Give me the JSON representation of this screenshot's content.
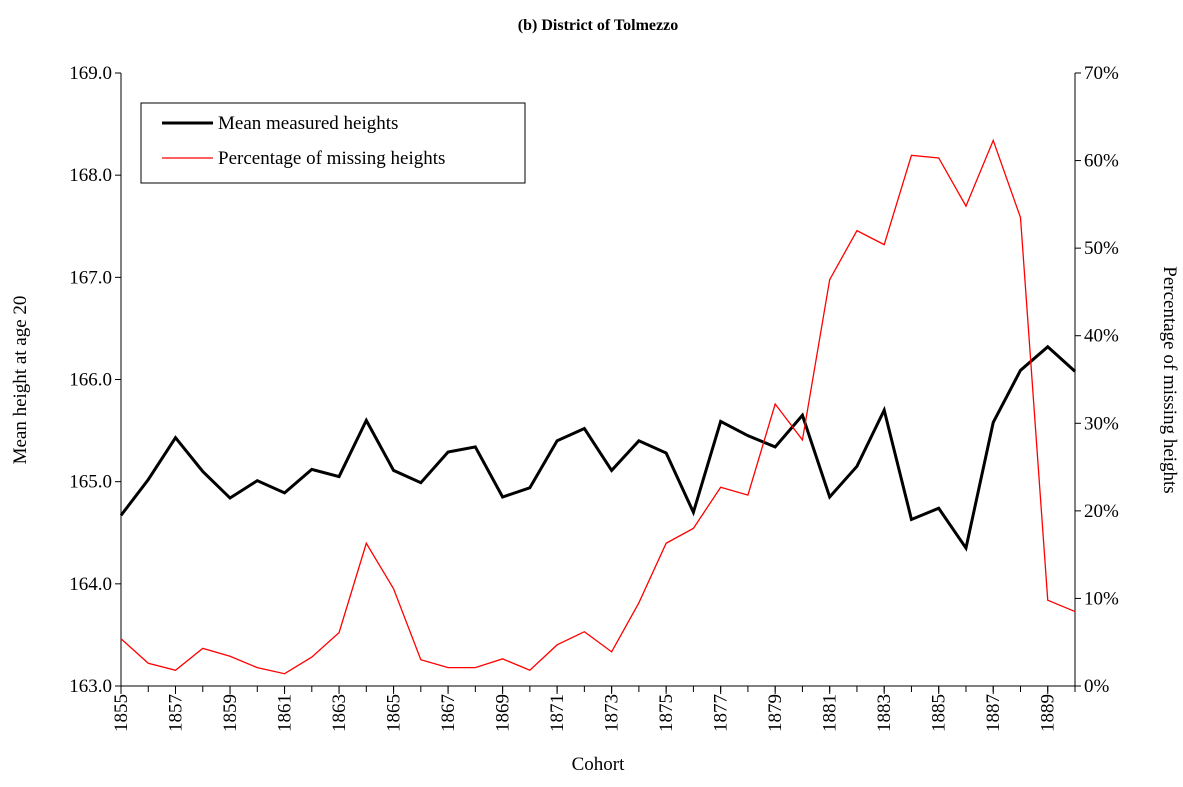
{
  "chart_data": {
    "type": "line",
    "title": "(b) District of Tolmezzo",
    "xlabel": "Cohort",
    "ylabel": "Mean height at age 20",
    "y2label": "Percentage of missing heights",
    "x": [
      1855,
      1856,
      1857,
      1858,
      1859,
      1860,
      1861,
      1862,
      1863,
      1864,
      1865,
      1866,
      1867,
      1868,
      1869,
      1870,
      1871,
      1872,
      1873,
      1874,
      1875,
      1876,
      1877,
      1878,
      1879,
      1880,
      1881,
      1882,
      1883,
      1884,
      1885,
      1886,
      1887,
      1888,
      1889,
      1890
    ],
    "xlim": [
      1855,
      1890
    ],
    "xticks": [
      1855,
      1857,
      1859,
      1861,
      1863,
      1865,
      1867,
      1869,
      1871,
      1873,
      1875,
      1877,
      1879,
      1881,
      1883,
      1885,
      1887,
      1889
    ],
    "ylim": [
      163,
      169
    ],
    "yticks": [
      {
        "value": 163,
        "label": "163.0"
      },
      {
        "value": 164,
        "label": "164.0"
      },
      {
        "value": 165,
        "label": "165.0"
      },
      {
        "value": 166,
        "label": "166.0"
      },
      {
        "value": 167,
        "label": "167.0"
      },
      {
        "value": 168,
        "label": "168.0"
      },
      {
        "value": 169,
        "label": "169.0"
      }
    ],
    "y2lim": [
      0,
      70
    ],
    "y2ticks": [
      {
        "value": 0,
        "label": "0%"
      },
      {
        "value": 10,
        "label": "10%"
      },
      {
        "value": 20,
        "label": "20%"
      },
      {
        "value": 30,
        "label": "30%"
      },
      {
        "value": 40,
        "label": "40%"
      },
      {
        "value": 50,
        "label": "50%"
      },
      {
        "value": 60,
        "label": "60%"
      },
      {
        "value": 70,
        "label": "70%"
      }
    ],
    "legend": "upper left",
    "series": [
      {
        "name": "Mean measured heights",
        "color": "#000000",
        "width": 3,
        "values": [
          164.67,
          165.02,
          165.43,
          165.1,
          164.84,
          165.01,
          164.89,
          165.12,
          165.05,
          165.6,
          165.11,
          164.99,
          165.29,
          165.34,
          164.85,
          164.94,
          165.4,
          165.52,
          165.11,
          165.4,
          165.28,
          164.7,
          165.59,
          165.45,
          165.34,
          165.65,
          164.85,
          165.15,
          165.7,
          164.63,
          164.74,
          164.35,
          165.58,
          166.09,
          166.32,
          166.08
        ]
      },
      {
        "name": "Percentage of missing heights",
        "color": "#ff0000",
        "width": 1.3,
        "axis": "y2",
        "values": [
          5.4,
          2.6,
          1.8,
          4.3,
          3.4,
          2.1,
          1.4,
          3.3,
          6.1,
          16.3,
          11.1,
          3.0,
          2.1,
          2.1,
          3.1,
          1.8,
          4.7,
          6.2,
          3.9,
          9.5,
          16.3,
          18.0,
          22.7,
          21.8,
          32.2,
          28.1,
          46.4,
          52.0,
          50.4,
          60.6,
          60.3,
          54.8,
          62.3,
          53.5,
          9.8,
          8.5
        ]
      }
    ]
  }
}
